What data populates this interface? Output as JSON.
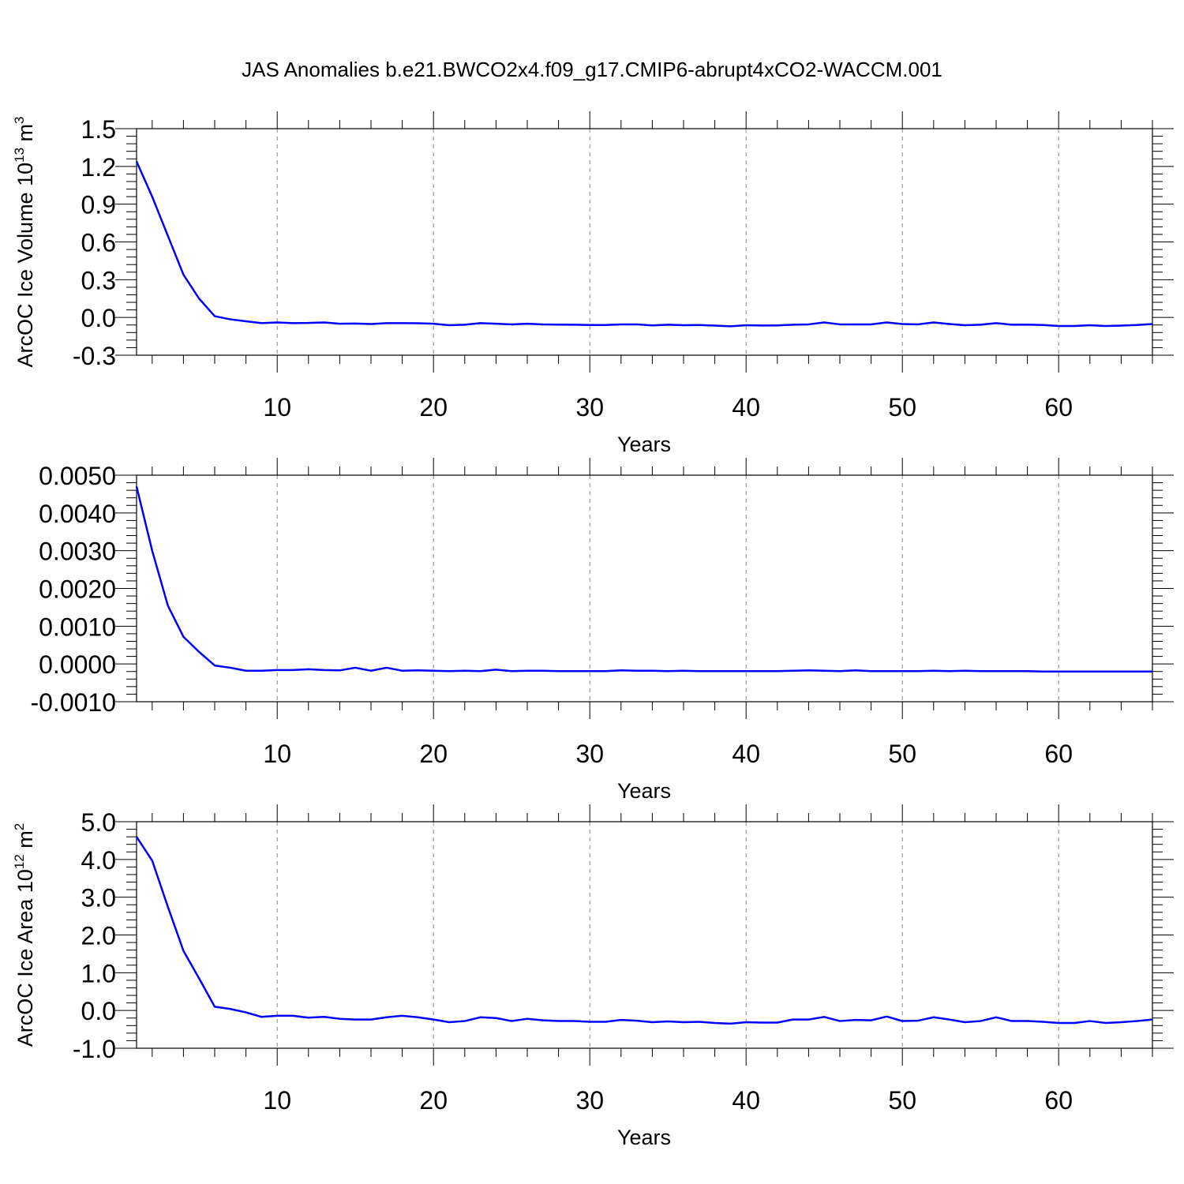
{
  "title": "JAS Anomalies b.e21.BWCO2x4.f09_g17.CMIP6-abrupt4xCO2-WACCM.001",
  "line_color": "#0000ff",
  "chart_data": [
    {
      "type": "line",
      "ylabel": {
        "text": "ArcOC Ice Volume 10",
        "sup": "13",
        "unit": " m",
        "unit_sup": "3"
      },
      "xlabel": "Years",
      "xlim": [
        1,
        66
      ],
      "ylim": [
        -0.3,
        1.5
      ],
      "yticks": [
        -0.3,
        0.0,
        0.3,
        0.6,
        0.9,
        1.2,
        1.5
      ],
      "ytick_labels": [
        "-0.3",
        "0.0",
        "0.3",
        "0.6",
        "0.9",
        "1.2",
        "1.5"
      ],
      "xticks": [
        10,
        20,
        30,
        40,
        50,
        60
      ],
      "xtick_labels": [
        "10",
        "20",
        "30",
        "40",
        "50",
        "60"
      ],
      "grid": "vertical-dashed",
      "x": [
        1,
        2,
        3,
        4,
        5,
        6,
        7,
        8,
        9,
        10,
        11,
        12,
        13,
        14,
        15,
        16,
        17,
        18,
        19,
        20,
        21,
        22,
        23,
        24,
        25,
        26,
        27,
        28,
        29,
        30,
        31,
        32,
        33,
        34,
        35,
        36,
        37,
        38,
        39,
        40,
        41,
        42,
        43,
        44,
        45,
        46,
        47,
        48,
        49,
        50,
        51,
        52,
        53,
        54,
        55,
        56,
        57,
        58,
        59,
        60,
        61,
        62,
        63,
        64,
        65,
        66
      ],
      "series": [
        {
          "values": [
            1.24,
            0.96,
            0.65,
            0.34,
            0.15,
            0.01,
            -0.015,
            -0.03,
            -0.045,
            -0.04,
            -0.045,
            -0.044,
            -0.04,
            -0.05,
            -0.048,
            -0.052,
            -0.045,
            -0.045,
            -0.046,
            -0.05,
            -0.062,
            -0.058,
            -0.045,
            -0.05,
            -0.055,
            -0.05,
            -0.055,
            -0.057,
            -0.058,
            -0.06,
            -0.06,
            -0.055,
            -0.055,
            -0.063,
            -0.058,
            -0.062,
            -0.06,
            -0.065,
            -0.07,
            -0.062,
            -0.064,
            -0.063,
            -0.058,
            -0.055,
            -0.04,
            -0.055,
            -0.055,
            -0.055,
            -0.04,
            -0.052,
            -0.055,
            -0.04,
            -0.052,
            -0.062,
            -0.058,
            -0.045,
            -0.058,
            -0.057,
            -0.06,
            -0.068,
            -0.068,
            -0.062,
            -0.068,
            -0.065,
            -0.06,
            -0.052
          ]
        }
      ]
    },
    {
      "type": "line",
      "xlabel": "Years",
      "xlim": [
        1,
        66
      ],
      "ylim": [
        -0.001,
        0.005
      ],
      "yticks": [
        -0.001,
        0.0,
        0.001,
        0.002,
        0.003,
        0.004,
        0.005
      ],
      "ytick_labels": [
        "-0.0010",
        "0.0000",
        "0.0010",
        "0.0020",
        "0.0030",
        "0.0040",
        "0.0050"
      ],
      "xticks": [
        10,
        20,
        30,
        40,
        50,
        60
      ],
      "xtick_labels": [
        "10",
        "20",
        "30",
        "40",
        "50",
        "60"
      ],
      "grid": "vertical-dashed",
      "x": [
        1,
        2,
        3,
        4,
        5,
        6,
        7,
        8,
        9,
        10,
        11,
        12,
        13,
        14,
        15,
        16,
        17,
        18,
        19,
        20,
        21,
        22,
        23,
        24,
        25,
        26,
        27,
        28,
        29,
        30,
        31,
        32,
        33,
        34,
        35,
        36,
        37,
        38,
        39,
        40,
        41,
        42,
        43,
        44,
        45,
        46,
        47,
        48,
        49,
        50,
        51,
        52,
        53,
        54,
        55,
        56,
        57,
        58,
        59,
        60,
        61,
        62,
        63,
        64,
        65,
        66
      ],
      "series": [
        {
          "values": [
            0.0047,
            0.003,
            0.00155,
            0.00072,
            0.00032,
            -4e-05,
            -0.0001,
            -0.00018,
            -0.00018,
            -0.00016,
            -0.00016,
            -0.00014,
            -0.00016,
            -0.00017,
            -0.0001,
            -0.00018,
            -0.0001,
            -0.00018,
            -0.00017,
            -0.00018,
            -0.00019,
            -0.00018,
            -0.00019,
            -0.00015,
            -0.00019,
            -0.00018,
            -0.00018,
            -0.00019,
            -0.00019,
            -0.00019,
            -0.00019,
            -0.00017,
            -0.00018,
            -0.00018,
            -0.00019,
            -0.00018,
            -0.00019,
            -0.00019,
            -0.00019,
            -0.00019,
            -0.00019,
            -0.00019,
            -0.00018,
            -0.00017,
            -0.00018,
            -0.00019,
            -0.00017,
            -0.00019,
            -0.00019,
            -0.00019,
            -0.00019,
            -0.00018,
            -0.00019,
            -0.00018,
            -0.00019,
            -0.00019,
            -0.00019,
            -0.00019,
            -0.0002,
            -0.0002,
            -0.0002,
            -0.0002,
            -0.0002,
            -0.0002,
            -0.0002,
            -0.0002
          ]
        }
      ]
    },
    {
      "type": "line",
      "ylabel": {
        "text": "ArcOC Ice Area 10",
        "sup": "12",
        "unit": " m",
        "unit_sup": "2"
      },
      "xlabel": "Years",
      "xlim": [
        1,
        66
      ],
      "ylim": [
        -1.0,
        5.0
      ],
      "yticks": [
        -1.0,
        0.0,
        1.0,
        2.0,
        3.0,
        4.0,
        5.0
      ],
      "ytick_labels": [
        "-1.0",
        "0.0",
        "1.0",
        "2.0",
        "3.0",
        "4.0",
        "5.0"
      ],
      "xticks": [
        10,
        20,
        30,
        40,
        50,
        60
      ],
      "xtick_labels": [
        "10",
        "20",
        "30",
        "40",
        "50",
        "60"
      ],
      "grid": "vertical-dashed",
      "x": [
        1,
        2,
        3,
        4,
        5,
        6,
        7,
        8,
        9,
        10,
        11,
        12,
        13,
        14,
        15,
        16,
        17,
        18,
        19,
        20,
        21,
        22,
        23,
        24,
        25,
        26,
        27,
        28,
        29,
        30,
        31,
        32,
        33,
        34,
        35,
        36,
        37,
        38,
        39,
        40,
        41,
        42,
        43,
        44,
        45,
        46,
        47,
        48,
        49,
        50,
        51,
        52,
        53,
        54,
        55,
        56,
        57,
        58,
        59,
        60,
        61,
        62,
        63,
        64,
        65,
        66
      ],
      "series": [
        {
          "values": [
            4.6,
            3.97,
            2.75,
            1.58,
            0.85,
            0.1,
            0.04,
            -0.05,
            -0.17,
            -0.14,
            -0.14,
            -0.19,
            -0.17,
            -0.22,
            -0.24,
            -0.24,
            -0.18,
            -0.14,
            -0.18,
            -0.24,
            -0.31,
            -0.28,
            -0.18,
            -0.2,
            -0.28,
            -0.22,
            -0.26,
            -0.28,
            -0.28,
            -0.3,
            -0.3,
            -0.25,
            -0.27,
            -0.31,
            -0.29,
            -0.31,
            -0.3,
            -0.33,
            -0.35,
            -0.31,
            -0.32,
            -0.32,
            -0.24,
            -0.24,
            -0.17,
            -0.28,
            -0.25,
            -0.26,
            -0.16,
            -0.28,
            -0.27,
            -0.18,
            -0.24,
            -0.31,
            -0.28,
            -0.18,
            -0.28,
            -0.28,
            -0.3,
            -0.33,
            -0.33,
            -0.28,
            -0.33,
            -0.31,
            -0.28,
            -0.24
          ]
        }
      ]
    }
  ]
}
